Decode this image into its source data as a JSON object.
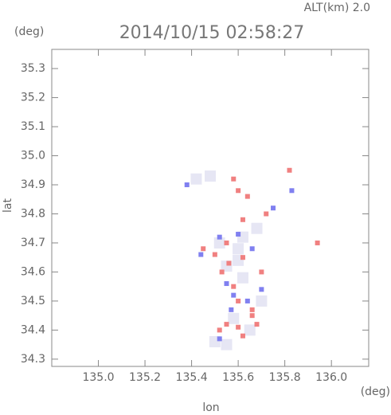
{
  "chart_data": {
    "type": "scatter",
    "title": "2014/10/15 02:58:27",
    "subtitle": "ALT(km) 2.0",
    "y_unit": "(deg)",
    "x_unit": "(deg)",
    "xlabel": "lon",
    "ylabel": "lat",
    "xlim": [
      134.8,
      136.16
    ],
    "ylim": [
      34.275,
      35.366
    ],
    "xticks": [
      {
        "value": 135.0,
        "label": "135.0"
      },
      135.2,
      135.4,
      135.6,
      135.8,
      {
        "value": 136.0,
        "label": "136.0"
      }
    ],
    "yticks": [
      34.3,
      34.4,
      34.5,
      34.6,
      34.7,
      34.8,
      34.9,
      {
        "value": 35.0,
        "label": "35.0"
      },
      35.1,
      35.2,
      35.3
    ],
    "series": [
      {
        "color": "#e6e6f4",
        "x": [
          135.42,
          135.48,
          135.6,
          135.55,
          135.62,
          135.58,
          135.65,
          135.5,
          135.55,
          135.7,
          135.62,
          135.68,
          135.52,
          135.6
        ],
        "y": [
          34.92,
          34.93,
          34.68,
          34.62,
          34.58,
          34.44,
          34.4,
          34.36,
          34.35,
          34.5,
          34.72,
          34.75,
          34.7,
          34.64
        ]
      },
      {
        "color": "#f08080",
        "x": [
          135.58,
          135.6,
          135.64,
          135.72,
          135.62,
          135.55,
          135.5,
          135.56,
          135.62,
          135.7,
          135.58,
          135.6,
          135.66,
          135.55,
          135.52,
          135.6,
          135.68,
          135.62,
          135.94,
          135.82,
          135.45,
          135.66,
          135.53
        ],
        "y": [
          34.92,
          34.88,
          34.86,
          34.8,
          34.78,
          34.7,
          34.66,
          34.63,
          34.65,
          34.6,
          34.55,
          34.5,
          34.47,
          34.42,
          34.4,
          34.41,
          34.42,
          34.38,
          34.7,
          34.95,
          34.68,
          34.45,
          34.6
        ]
      },
      {
        "color": "#8080f0",
        "x": [
          135.75,
          135.52,
          135.44,
          135.6,
          135.66,
          135.58,
          135.64,
          135.57,
          135.52,
          135.83,
          135.38,
          135.7,
          135.55
        ],
        "y": [
          34.82,
          34.72,
          34.66,
          34.73,
          34.68,
          34.52,
          34.5,
          34.47,
          34.37,
          34.88,
          34.9,
          34.54,
          34.56
        ]
      }
    ]
  }
}
